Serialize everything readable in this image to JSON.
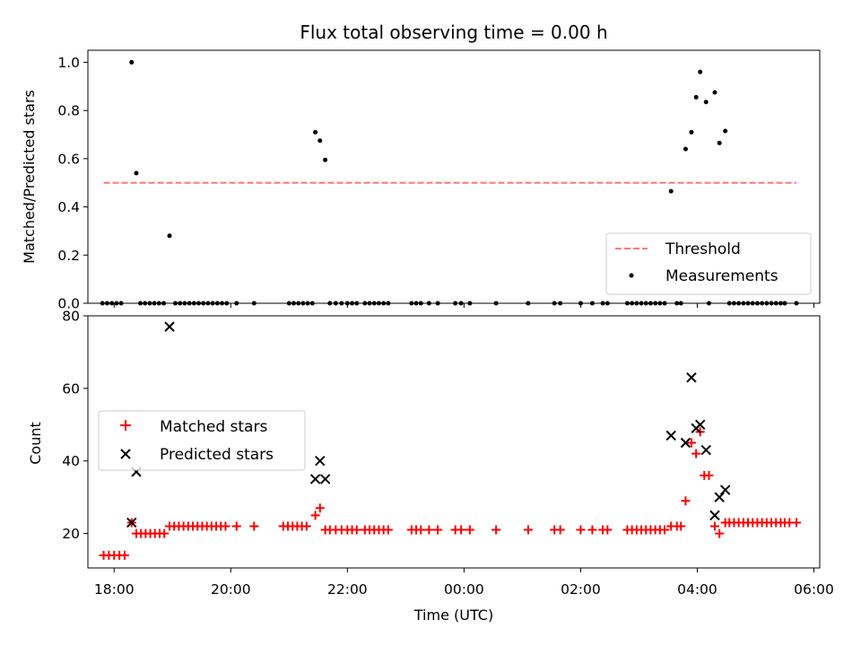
{
  "chart_data": [
    {
      "type": "scatter",
      "panel": "top",
      "title": "Flux total observing time = 0.00 h",
      "xlabel": "",
      "ylabel": "Matched/Predicted stars",
      "xlim": [
        -0.45,
        12.1
      ],
      "ylim": [
        0.0,
        1.05
      ],
      "yticks": [
        0.0,
        0.2,
        0.4,
        0.6,
        0.8,
        1.0
      ],
      "ytick_labels": [
        "0.0",
        "0.2",
        "0.4",
        "0.6",
        "0.8",
        "1.0"
      ],
      "grid": false,
      "legend": "bottom-right",
      "threshold": {
        "name": "Threshold",
        "y": 0.5,
        "x_range": [
          -0.18,
          11.7
        ],
        "color": "#ff7777",
        "style": "dashed"
      },
      "series": [
        {
          "name": "Measurements",
          "color": "#000000",
          "marker": "dot",
          "points": [
            [
              0.3,
              1.0
            ],
            [
              0.38,
              0.54
            ],
            [
              0.95,
              0.28
            ],
            [
              3.45,
              0.71
            ],
            [
              3.53,
              0.675
            ],
            [
              3.62,
              0.595
            ],
            [
              9.55,
              0.465
            ],
            [
              9.8,
              0.64
            ],
            [
              9.9,
              0.71
            ],
            [
              9.98,
              0.855
            ],
            [
              10.05,
              0.96
            ],
            [
              10.15,
              0.835
            ],
            [
              10.3,
              0.875
            ],
            [
              10.38,
              0.665
            ],
            [
              10.48,
              0.715
            ],
            [
              -0.2,
              0
            ],
            [
              -0.12,
              0
            ],
            [
              -0.04,
              0
            ],
            [
              0.04,
              0
            ],
            [
              0.12,
              0
            ],
            [
              0.45,
              0
            ],
            [
              0.53,
              0
            ],
            [
              0.61,
              0
            ],
            [
              0.69,
              0
            ],
            [
              0.77,
              0
            ],
            [
              0.85,
              0
            ],
            [
              1.05,
              0
            ],
            [
              1.13,
              0
            ],
            [
              1.21,
              0
            ],
            [
              1.29,
              0
            ],
            [
              1.37,
              0
            ],
            [
              1.45,
              0
            ],
            [
              1.53,
              0
            ],
            [
              1.61,
              0
            ],
            [
              1.69,
              0
            ],
            [
              1.77,
              0
            ],
            [
              1.85,
              0
            ],
            [
              1.93,
              0
            ],
            [
              2.1,
              0
            ],
            [
              2.4,
              0
            ],
            [
              3.0,
              0
            ],
            [
              3.08,
              0
            ],
            [
              3.16,
              0
            ],
            [
              3.24,
              0
            ],
            [
              3.32,
              0
            ],
            [
              3.4,
              0
            ],
            [
              3.7,
              0
            ],
            [
              3.8,
              0
            ],
            [
              3.9,
              0
            ],
            [
              4.0,
              0
            ],
            [
              4.08,
              0
            ],
            [
              4.16,
              0
            ],
            [
              4.3,
              0
            ],
            [
              4.38,
              0
            ],
            [
              4.46,
              0
            ],
            [
              4.54,
              0
            ],
            [
              4.62,
              0
            ],
            [
              4.7,
              0
            ],
            [
              5.1,
              0
            ],
            [
              5.18,
              0
            ],
            [
              5.26,
              0
            ],
            [
              5.4,
              0
            ],
            [
              5.55,
              0
            ],
            [
              5.85,
              0
            ],
            [
              5.95,
              0
            ],
            [
              6.1,
              0
            ],
            [
              6.55,
              0
            ],
            [
              7.1,
              0
            ],
            [
              7.55,
              0
            ],
            [
              7.65,
              0
            ],
            [
              8.0,
              0
            ],
            [
              8.2,
              0
            ],
            [
              8.38,
              0
            ],
            [
              8.46,
              0
            ],
            [
              8.8,
              0
            ],
            [
              8.88,
              0
            ],
            [
              8.96,
              0
            ],
            [
              9.04,
              0
            ],
            [
              9.12,
              0
            ],
            [
              9.2,
              0
            ],
            [
              9.28,
              0
            ],
            [
              9.36,
              0
            ],
            [
              9.44,
              0
            ],
            [
              9.65,
              0
            ],
            [
              9.72,
              0
            ],
            [
              10.2,
              0
            ],
            [
              10.55,
              0
            ],
            [
              10.63,
              0
            ],
            [
              10.71,
              0
            ],
            [
              10.79,
              0
            ],
            [
              10.87,
              0
            ],
            [
              10.95,
              0
            ],
            [
              11.03,
              0
            ],
            [
              11.11,
              0
            ],
            [
              11.19,
              0
            ],
            [
              11.27,
              0
            ],
            [
              11.35,
              0
            ],
            [
              11.43,
              0
            ],
            [
              11.5,
              0
            ],
            [
              11.7,
              0
            ]
          ]
        }
      ]
    },
    {
      "type": "scatter",
      "panel": "bottom",
      "title": "",
      "xlabel": "Time (UTC)",
      "ylabel": "Count",
      "xlim": [
        -0.45,
        12.1
      ],
      "ylim": [
        10.5,
        80
      ],
      "xticks": [
        0,
        2,
        4,
        6,
        8,
        10,
        12
      ],
      "xtick_labels": [
        "18:00",
        "20:00",
        "22:00",
        "00:00",
        "02:00",
        "04:00",
        "06:00"
      ],
      "yticks": [
        20,
        40,
        60,
        80
      ],
      "ytick_labels": [
        "20",
        "40",
        "60",
        "80"
      ],
      "grid": false,
      "legend": "center-left",
      "series": [
        {
          "name": "Matched stars",
          "color": "#ff0000",
          "marker": "plus",
          "points": [
            [
              -0.18,
              14
            ],
            [
              -0.09,
              14
            ],
            [
              0.0,
              14
            ],
            [
              0.09,
              14
            ],
            [
              0.18,
              14
            ],
            [
              0.3,
              23
            ],
            [
              0.38,
              20
            ],
            [
              0.46,
              20
            ],
            [
              0.54,
              20
            ],
            [
              0.62,
              20
            ],
            [
              0.7,
              20
            ],
            [
              0.78,
              20
            ],
            [
              0.86,
              20
            ],
            [
              0.95,
              22
            ],
            [
              1.03,
              22
            ],
            [
              1.11,
              22
            ],
            [
              1.19,
              22
            ],
            [
              1.27,
              22
            ],
            [
              1.35,
              22
            ],
            [
              1.43,
              22
            ],
            [
              1.51,
              22
            ],
            [
              1.59,
              22
            ],
            [
              1.67,
              22
            ],
            [
              1.75,
              22
            ],
            [
              1.83,
              22
            ],
            [
              1.91,
              22
            ],
            [
              2.1,
              22
            ],
            [
              2.4,
              22
            ],
            [
              2.9,
              22
            ],
            [
              2.98,
              22
            ],
            [
              3.06,
              22
            ],
            [
              3.14,
              22
            ],
            [
              3.22,
              22
            ],
            [
              3.3,
              22
            ],
            [
              3.45,
              25
            ],
            [
              3.53,
              27
            ],
            [
              3.62,
              21
            ],
            [
              3.7,
              21
            ],
            [
              3.8,
              21
            ],
            [
              3.9,
              21
            ],
            [
              4.0,
              21
            ],
            [
              4.08,
              21
            ],
            [
              4.16,
              21
            ],
            [
              4.3,
              21
            ],
            [
              4.38,
              21
            ],
            [
              4.46,
              21
            ],
            [
              4.54,
              21
            ],
            [
              4.62,
              21
            ],
            [
              4.7,
              21
            ],
            [
              5.1,
              21
            ],
            [
              5.18,
              21
            ],
            [
              5.26,
              21
            ],
            [
              5.4,
              21
            ],
            [
              5.55,
              21
            ],
            [
              5.85,
              21
            ],
            [
              5.95,
              21
            ],
            [
              6.1,
              21
            ],
            [
              6.55,
              21
            ],
            [
              7.1,
              21
            ],
            [
              7.55,
              21
            ],
            [
              7.65,
              21
            ],
            [
              8.0,
              21
            ],
            [
              8.2,
              21
            ],
            [
              8.38,
              21
            ],
            [
              8.46,
              21
            ],
            [
              8.8,
              21
            ],
            [
              8.88,
              21
            ],
            [
              8.96,
              21
            ],
            [
              9.04,
              21
            ],
            [
              9.12,
              21
            ],
            [
              9.2,
              21
            ],
            [
              9.28,
              21
            ],
            [
              9.36,
              21
            ],
            [
              9.44,
              21
            ],
            [
              9.55,
              22
            ],
            [
              9.65,
              22
            ],
            [
              9.72,
              22
            ],
            [
              9.8,
              29
            ],
            [
              9.9,
              45
            ],
            [
              9.98,
              42
            ],
            [
              10.05,
              48
            ],
            [
              10.12,
              36
            ],
            [
              10.2,
              36
            ],
            [
              10.3,
              22
            ],
            [
              10.38,
              20
            ],
            [
              10.48,
              23
            ],
            [
              10.55,
              23
            ],
            [
              10.63,
              23
            ],
            [
              10.71,
              23
            ],
            [
              10.79,
              23
            ],
            [
              10.87,
              23
            ],
            [
              10.95,
              23
            ],
            [
              11.03,
              23
            ],
            [
              11.11,
              23
            ],
            [
              11.19,
              23
            ],
            [
              11.27,
              23
            ],
            [
              11.35,
              23
            ],
            [
              11.43,
              23
            ],
            [
              11.5,
              23
            ],
            [
              11.58,
              23
            ],
            [
              11.7,
              23
            ]
          ]
        },
        {
          "name": "Predicted stars",
          "color": "#000000",
          "marker": "x",
          "points": [
            [
              0.3,
              23
            ],
            [
              0.38,
              37
            ],
            [
              0.95,
              77
            ],
            [
              3.45,
              35
            ],
            [
              3.53,
              40
            ],
            [
              3.62,
              35
            ],
            [
              9.55,
              47
            ],
            [
              9.8,
              45
            ],
            [
              9.9,
              63
            ],
            [
              9.98,
              49
            ],
            [
              10.05,
              50
            ],
            [
              10.15,
              43
            ],
            [
              10.3,
              25
            ],
            [
              10.38,
              30
            ],
            [
              10.48,
              32
            ]
          ]
        }
      ]
    }
  ]
}
